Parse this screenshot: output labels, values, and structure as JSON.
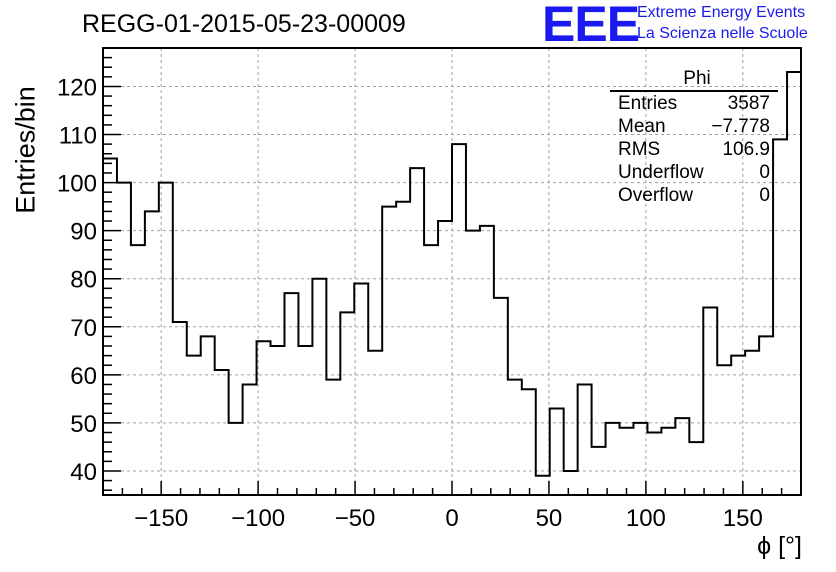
{
  "header": {
    "title": "REGG-01-2015-05-23-00009",
    "logo_text": "EEE",
    "logo_line1": "Extreme Energy Events",
    "logo_line2": "La Scienza nelle Scuole"
  },
  "stats_box": {
    "name": "Phi",
    "rows": [
      {
        "label": "Entries",
        "value": "3587"
      },
      {
        "label": "Mean",
        "value": "−7.778"
      },
      {
        "label": "RMS",
        "value": "106.9"
      },
      {
        "label": "Underflow",
        "value": "0"
      },
      {
        "label": "Overflow",
        "value": "0"
      }
    ]
  },
  "colors": {
    "line": "#000000",
    "grid": "#a0a0a0",
    "logo": "#1a1af0"
  },
  "chart_data": {
    "type": "bar",
    "style": "step-histogram",
    "xlabel": "ϕ [°]",
    "ylabel": "Entries/bin",
    "xlim": [
      -180,
      180
    ],
    "ylim": [
      35,
      128
    ],
    "bin_width": 7.2,
    "bin_edges_start": -180,
    "xticks": [
      -150,
      -100,
      -50,
      0,
      50,
      100,
      150
    ],
    "xtick_labels": [
      "−150",
      "−100",
      "−50",
      "0",
      "50",
      "100",
      "150"
    ],
    "yticks": [
      40,
      50,
      60,
      70,
      80,
      90,
      100,
      110,
      120
    ],
    "grid": true,
    "values": [
      105,
      100,
      87,
      94,
      100,
      71,
      64,
      68,
      61,
      50,
      58,
      67,
      66,
      77,
      66,
      80,
      59,
      73,
      79,
      65,
      95,
      96,
      103,
      87,
      92,
      108,
      90,
      91,
      76,
      59,
      57,
      39,
      53,
      40,
      58,
      45,
      50,
      49,
      50,
      48,
      49,
      51,
      46,
      74,
      62,
      64,
      65,
      68,
      109,
      123
    ]
  }
}
